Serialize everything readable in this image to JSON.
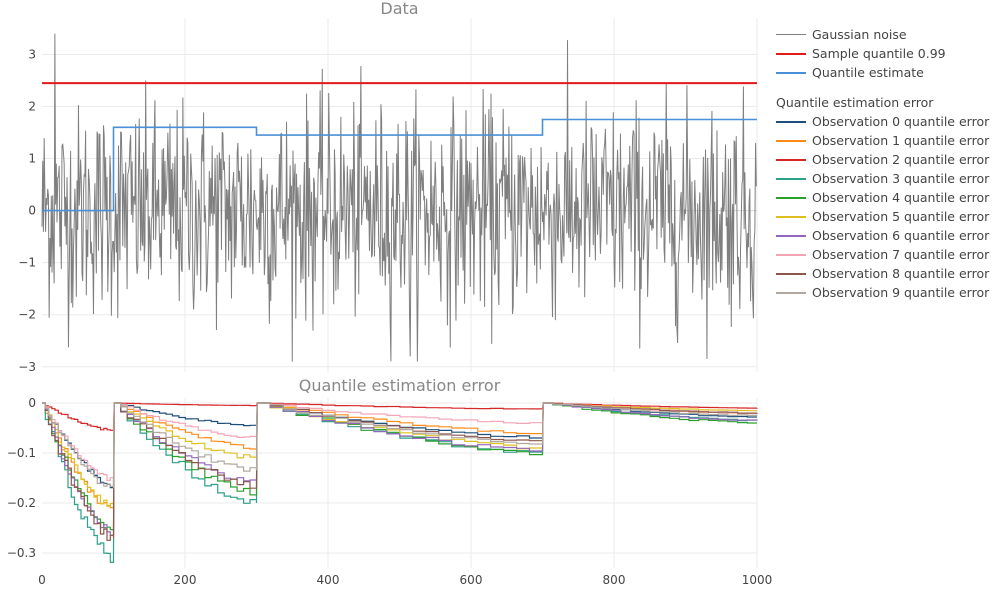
{
  "chart_data": [
    {
      "type": "line",
      "title": "Data",
      "xlim": [
        0,
        1000
      ],
      "ylim": [
        -3.1,
        3.7
      ],
      "yticks": [
        -3,
        -2,
        -1,
        0,
        1,
        2,
        3
      ],
      "ytick_labels": [
        "−3",
        "−2",
        "−1",
        "0",
        "1",
        "2",
        "3"
      ],
      "grid": true,
      "series": [
        {
          "name": "Gaussian noise",
          "color": "#7f7f7f",
          "n": 1000,
          "approx_extremes": {
            "max": 3.4,
            "min": -2.8
          }
        },
        {
          "name": "Sample quantile 0.99",
          "color": "#e31a1c",
          "x": [
            0,
            1000
          ],
          "values": [
            2.45,
            2.45
          ]
        },
        {
          "name": "Quantile estimate",
          "color": "#4a90d9",
          "steps": [
            [
              0,
              0.0
            ],
            [
              100,
              1.6
            ],
            [
              300,
              1.45
            ],
            [
              700,
              1.75
            ],
            [
              1000,
              1.75
            ]
          ]
        }
      ]
    },
    {
      "type": "line",
      "title": "Quantile estimation error",
      "xlim": [
        0,
        1000
      ],
      "ylim": [
        -0.33,
        0.01
      ],
      "xticks": [
        0,
        200,
        400,
        600,
        800,
        1000
      ],
      "xtick_labels": [
        "0",
        "200",
        "400",
        "600",
        "800",
        "1000"
      ],
      "yticks": [
        -0.3,
        -0.2,
        -0.1,
        0
      ],
      "ytick_labels": [
        "−0.3",
        "−0.2",
        "−0.1",
        "0"
      ],
      "grid": true,
      "legend_group_title": "Quantile estimation error",
      "series": [
        {
          "name": "Observation 0 quantile error",
          "color": "#1f4e79",
          "x": [
            0,
            100,
            101,
            300,
            301,
            700,
            701,
            1000
          ],
          "values": [
            0,
            -0.165,
            0,
            -0.045,
            0,
            -0.07,
            0,
            -0.028
          ]
        },
        {
          "name": "Observation 1 quantile error",
          "color": "#ff8c1a",
          "x": [
            0,
            100,
            101,
            300,
            301,
            700,
            701,
            1000
          ],
          "values": [
            0,
            -0.215,
            0,
            -0.09,
            0,
            -0.06,
            0,
            -0.02
          ]
        },
        {
          "name": "Observation 2 quantile error",
          "color": "#d62728",
          "x": [
            0,
            100,
            101,
            300,
            301,
            700,
            701,
            1000
          ],
          "values": [
            0,
            -0.055,
            0,
            -0.005,
            0,
            -0.012,
            0,
            -0.01
          ]
        },
        {
          "name": "Observation 3 quantile error",
          "color": "#2ca088",
          "x": [
            0,
            100,
            101,
            300,
            301,
            700,
            701,
            1000
          ],
          "values": [
            0,
            -0.31,
            0,
            -0.2,
            0,
            -0.1,
            0,
            -0.035
          ]
        },
        {
          "name": "Observation 4 quantile error",
          "color": "#2ca02c",
          "x": [
            0,
            100,
            101,
            300,
            301,
            700,
            701,
            1000
          ],
          "values": [
            0,
            -0.255,
            0,
            -0.18,
            0,
            -0.1,
            0,
            -0.04
          ]
        },
        {
          "name": "Observation 5 quantile error",
          "color": "#e0c020",
          "x": [
            0,
            100,
            101,
            300,
            301,
            700,
            701,
            1000
          ],
          "values": [
            0,
            -0.21,
            0,
            -0.11,
            0,
            -0.09,
            0,
            -0.015
          ]
        },
        {
          "name": "Observation 6 quantile error",
          "color": "#9467bd",
          "x": [
            0,
            100,
            101,
            300,
            301,
            700,
            701,
            1000
          ],
          "values": [
            0,
            -0.265,
            0,
            -0.16,
            0,
            -0.095,
            0,
            -0.035
          ]
        },
        {
          "name": "Observation 7 quantile error",
          "color": "#f4a6b7",
          "x": [
            0,
            100,
            101,
            300,
            301,
            700,
            701,
            1000
          ],
          "values": [
            0,
            -0.155,
            0,
            -0.07,
            0,
            -0.04,
            0,
            -0.02
          ]
        },
        {
          "name": "Observation 8 quantile error",
          "color": "#8c564b",
          "x": [
            0,
            100,
            101,
            300,
            301,
            700,
            701,
            1000
          ],
          "values": [
            0,
            -0.27,
            0,
            -0.165,
            0,
            -0.075,
            0,
            -0.02
          ]
        },
        {
          "name": "Observation 9 quantile error",
          "color": "#b0a8a0",
          "x": [
            0,
            100,
            101,
            300,
            301,
            700,
            701,
            1000
          ],
          "values": [
            0,
            -0.17,
            0,
            -0.135,
            0,
            -0.08,
            0,
            -0.025
          ]
        }
      ]
    }
  ]
}
